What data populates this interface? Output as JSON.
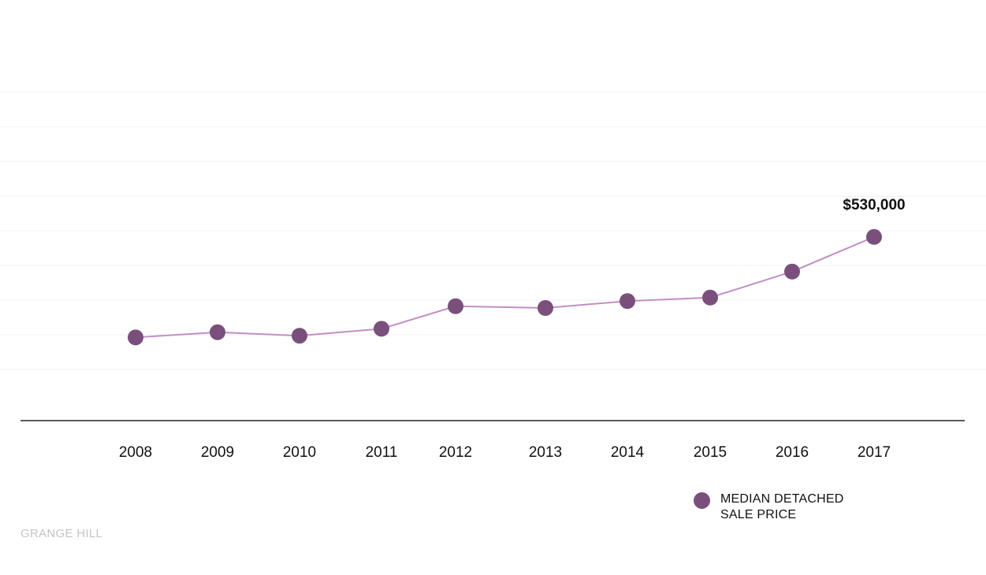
{
  "chart_data": {
    "type": "line",
    "categories": [
      "2008",
      "2009",
      "2010",
      "2011",
      "2012",
      "2013",
      "2014",
      "2015",
      "2016",
      "2017"
    ],
    "series": [
      {
        "name": "MEDIAN DETACHED SALE PRICE",
        "values": [
          240000,
          255000,
          245000,
          265000,
          330000,
          325000,
          345000,
          355000,
          430000,
          530000
        ],
        "color": "#7b4f7c",
        "line_color": "#c28fc4"
      }
    ],
    "ylim": [
      0,
      900000
    ],
    "grid": true,
    "legend": "bottom-right",
    "annotation": {
      "category": "2017",
      "label": "$530,000"
    }
  },
  "legend": {
    "label": "MEDIAN DETACHED SALE PRICE"
  },
  "brand": {
    "text": "GRANGE HILL"
  }
}
